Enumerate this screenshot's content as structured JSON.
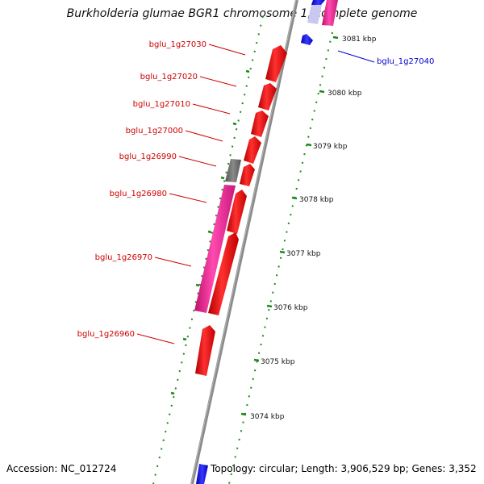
{
  "title": "Burkholderia glumae BGR1 chromosome 1, complete genome",
  "accession": "Accession: NC_012724",
  "topology": "Topology: circular; Length: 3,906,529 bp; Genes: 3,352",
  "colors": {
    "forward_gene": "#ff1a1a",
    "pink_gene": "#ff2a9e",
    "gray_gene": "#777777",
    "blue_gene": "#1010ff",
    "backbone": "#888888",
    "tick": "#1a8a1a",
    "label_red": "#cc0000",
    "label_blue": "#0000cc"
  },
  "ticks": [
    {
      "label": "3081 kbp"
    },
    {
      "label": "3080 kbp"
    },
    {
      "label": "3079 kbp"
    },
    {
      "label": "3078 kbp"
    },
    {
      "label": "3077 kbp"
    },
    {
      "label": "3076 kbp"
    },
    {
      "label": "3075 kbp"
    },
    {
      "label": "3074 kbp"
    }
  ],
  "gene_labels": [
    {
      "name": "bglu_1g27030"
    },
    {
      "name": "bglu_1g27020"
    },
    {
      "name": "bglu_1g27010"
    },
    {
      "name": "bglu_1g27000"
    },
    {
      "name": "bglu_1g26990"
    },
    {
      "name": "bglu_1g26980"
    },
    {
      "name": "bglu_1g26970"
    },
    {
      "name": "bglu_1g26960"
    },
    {
      "name": "bglu_1g27040"
    }
  ]
}
